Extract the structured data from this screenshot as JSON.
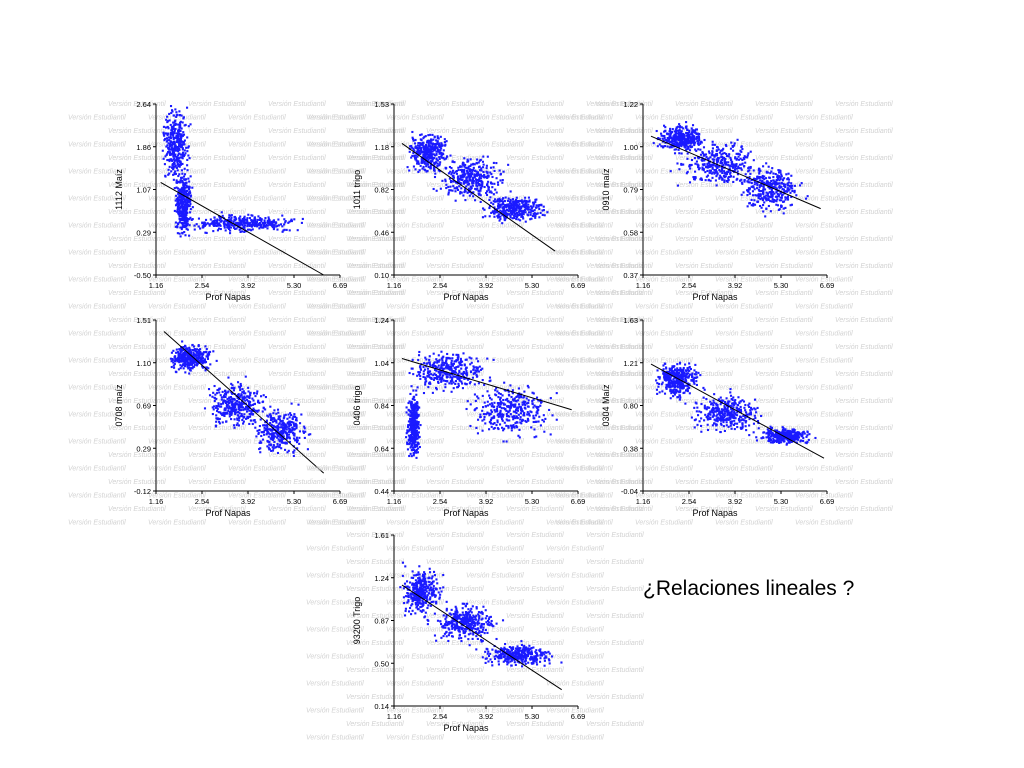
{
  "watermark": "Versión Estudiantil",
  "question": "¿Relaciones lineales ?",
  "colors": {
    "points": "#1a1aff",
    "line": "#000000",
    "watermark": "#d2d2d2"
  },
  "chart_data": [
    {
      "id": "1112",
      "type": "scatter",
      "xlabel": "Prof Napas",
      "ylabel": "1112 Maíz",
      "xticks": [
        "1.16",
        "2.54",
        "3.92",
        "5.30",
        "6.69"
      ],
      "yticks": [
        "-0.50",
        "0.29",
        "1.07",
        "1.86",
        "2.64"
      ],
      "xlim": [
        1.16,
        6.69
      ],
      "ylim": [
        -0.5,
        2.64
      ],
      "trend_line": {
        "x": [
          1.3,
          6.2
        ],
        "y": [
          1.2,
          -0.5
        ]
      },
      "point_clusters": [
        {
          "x_center": 1.75,
          "x_spread": 0.3,
          "y_center": 1.9,
          "y_spread": 0.55
        },
        {
          "x_center": 2.0,
          "x_spread": 0.2,
          "y_center": 0.8,
          "y_spread": 0.45
        },
        {
          "x_center": 3.8,
          "x_spread": 1.3,
          "y_center": 0.45,
          "y_spread": 0.13
        }
      ]
    },
    {
      "id": "1011",
      "type": "scatter",
      "xlabel": "Prof Napas",
      "ylabel": "1011 trigo",
      "xticks": [
        "1.16",
        "2.54",
        "3.92",
        "5.30",
        "6.69"
      ],
      "yticks": [
        "0.10",
        "0.46",
        "0.82",
        "1.18",
        "1.53"
      ],
      "xlim": [
        1.16,
        6.69
      ],
      "ylim": [
        0.1,
        1.53
      ],
      "trend_line": {
        "x": [
          1.4,
          6.0
        ],
        "y": [
          1.2,
          0.3
        ]
      },
      "point_clusters": [
        {
          "x_center": 2.2,
          "x_spread": 0.45,
          "y_center": 1.12,
          "y_spread": 0.13
        },
        {
          "x_center": 3.5,
          "x_spread": 0.8,
          "y_center": 0.9,
          "y_spread": 0.14
        },
        {
          "x_center": 4.8,
          "x_spread": 0.7,
          "y_center": 0.65,
          "y_spread": 0.09
        }
      ]
    },
    {
      "id": "0910",
      "type": "scatter",
      "xlabel": "Prof Napas",
      "ylabel": "0910 maíz",
      "xticks": [
        "1.16",
        "2.54",
        "3.92",
        "5.30",
        "6.69"
      ],
      "yticks": [
        "0.37",
        "0.58",
        "0.79",
        "1.00",
        "1.22"
      ],
      "xlim": [
        1.16,
        6.69
      ],
      "ylim": [
        0.37,
        1.22
      ],
      "trend_line": {
        "x": [
          1.4,
          6.5
        ],
        "y": [
          1.06,
          0.7
        ]
      },
      "point_clusters": [
        {
          "x_center": 2.3,
          "x_spread": 0.55,
          "y_center": 1.05,
          "y_spread": 0.05
        },
        {
          "x_center": 3.5,
          "x_spread": 0.9,
          "y_center": 0.92,
          "y_spread": 0.08
        },
        {
          "x_center": 5.0,
          "x_spread": 0.7,
          "y_center": 0.8,
          "y_spread": 0.09
        }
      ]
    },
    {
      "id": "0708",
      "type": "scatter",
      "xlabel": "Prof Napas",
      "ylabel": "0708 maíz",
      "xticks": [
        "1.16",
        "2.54",
        "3.92",
        "5.30",
        "6.69"
      ],
      "yticks": [
        "-0.12",
        "0.29",
        "0.69",
        "1.10",
        "1.51"
      ],
      "xlim": [
        1.16,
        6.69
      ],
      "ylim": [
        -0.12,
        1.51
      ],
      "trend_line": {
        "x": [
          1.4,
          6.2
        ],
        "y": [
          1.4,
          0.05
        ]
      },
      "point_clusters": [
        {
          "x_center": 2.2,
          "x_spread": 0.5,
          "y_center": 1.15,
          "y_spread": 0.1
        },
        {
          "x_center": 3.6,
          "x_spread": 0.7,
          "y_center": 0.7,
          "y_spread": 0.18
        },
        {
          "x_center": 4.9,
          "x_spread": 0.6,
          "y_center": 0.45,
          "y_spread": 0.16
        }
      ]
    },
    {
      "id": "0406",
      "type": "scatter",
      "xlabel": "Prof Napas",
      "ylabel": "0406 trigo",
      "xticks": [
        "1.16",
        "2.54",
        "3.92",
        "5.30",
        "6.69"
      ],
      "yticks": [
        "0.44",
        "0.64",
        "0.84",
        "1.04",
        "1.24"
      ],
      "xlim": [
        1.16,
        6.69
      ],
      "ylim": [
        0.44,
        1.24
      ],
      "trend_line": {
        "x": [
          1.4,
          6.5
        ],
        "y": [
          1.06,
          0.82
        ]
      },
      "point_clusters": [
        {
          "x_center": 1.75,
          "x_spread": 0.15,
          "y_center": 0.75,
          "y_spread": 0.12
        },
        {
          "x_center": 2.8,
          "x_spread": 0.9,
          "y_center": 1.0,
          "y_spread": 0.07
        },
        {
          "x_center": 4.7,
          "x_spread": 1.0,
          "y_center": 0.82,
          "y_spread": 0.1
        }
      ]
    },
    {
      "id": "0304",
      "type": "scatter",
      "xlabel": "Prof Napas",
      "ylabel": "0304 Maíz",
      "xticks": [
        "1.16",
        "2.54",
        "3.92",
        "5.30",
        "6.69"
      ],
      "yticks": [
        "-0.04",
        "0.38",
        "0.80",
        "1.21",
        "1.63"
      ],
      "xlim": [
        1.16,
        6.69
      ],
      "ylim": [
        -0.04,
        1.63
      ],
      "trend_line": {
        "x": [
          1.4,
          6.6
        ],
        "y": [
          1.2,
          0.28
        ]
      },
      "point_clusters": [
        {
          "x_center": 2.2,
          "x_spread": 0.5,
          "y_center": 1.05,
          "y_spread": 0.14
        },
        {
          "x_center": 3.7,
          "x_spread": 0.8,
          "y_center": 0.72,
          "y_spread": 0.14
        },
        {
          "x_center": 5.4,
          "x_spread": 0.6,
          "y_center": 0.5,
          "y_spread": 0.06
        }
      ]
    },
    {
      "id": "93200",
      "type": "scatter",
      "xlabel": "Prof Napas",
      "ylabel": "93200 Trigo",
      "xticks": [
        "1.16",
        "2.54",
        "3.92",
        "5.30",
        "6.69"
      ],
      "yticks": [
        "0.14",
        "0.50",
        "0.87",
        "1.24",
        "1.61"
      ],
      "xlim": [
        1.16,
        6.69
      ],
      "ylim": [
        0.14,
        1.61
      ],
      "trend_line": {
        "x": [
          1.4,
          6.2
        ],
        "y": [
          1.18,
          0.28
        ]
      },
      "point_clusters": [
        {
          "x_center": 2.0,
          "x_spread": 0.45,
          "y_center": 1.12,
          "y_spread": 0.15
        },
        {
          "x_center": 3.3,
          "x_spread": 0.7,
          "y_center": 0.85,
          "y_spread": 0.12
        },
        {
          "x_center": 4.9,
          "x_spread": 0.8,
          "y_center": 0.58,
          "y_spread": 0.07
        }
      ]
    }
  ]
}
